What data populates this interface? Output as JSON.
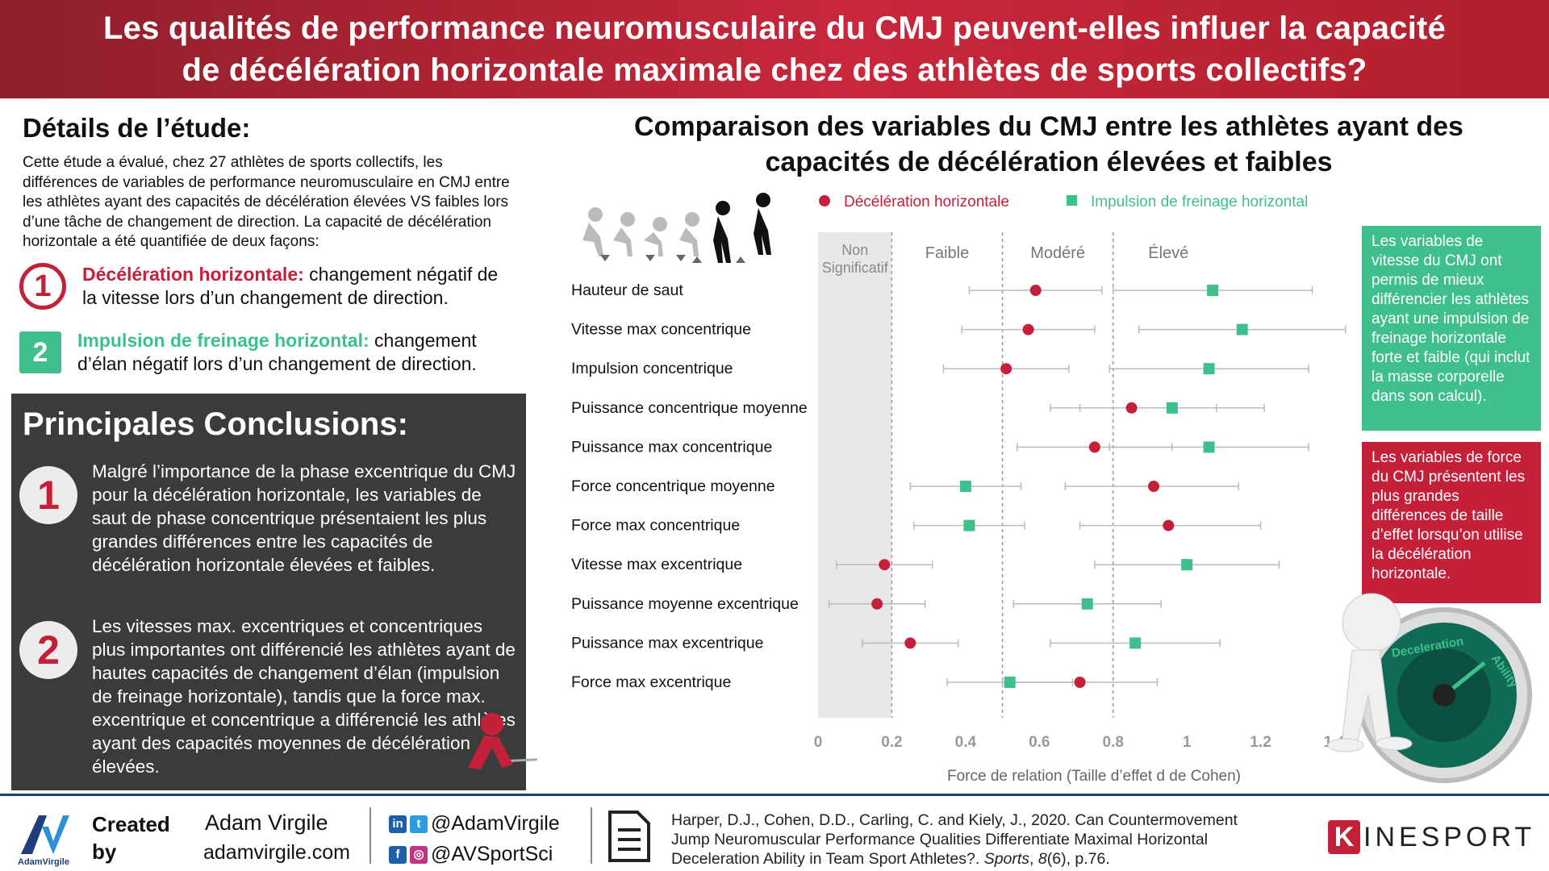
{
  "header": {
    "title_line1": "Les qualités de performance neuromusculaire du CMJ peuvent-elles influer la capacité",
    "title_line2": "de décélération horizontale maximale chez des athlètes de sports collectifs?"
  },
  "study": {
    "title": "Détails de l’étude:",
    "text": "Cette étude a évalué, chez 27 athlètes de sports collectifs, les différences de variables de performance neuromusculaire en CMJ entre les athlètes ayant des capacités de décélération élevées VS faibles lors d’une tâche de changement de direction. La capacité de décélération horizontale a été quantifiée de deux façons:",
    "def1": {
      "num": "1",
      "bold": "Décélération horizontale:",
      "rest": " changement négatif de la vitesse lors d’un changement de direction."
    },
    "def2": {
      "num": "2",
      "bold": "Impulsion de freinage horizontal:",
      "rest": " changement d’élan négatif lors d’un changement de direction."
    }
  },
  "conclusions": {
    "title": "Principales Conclusions:",
    "c1": {
      "num": "1",
      "text": "Malgré l’importance de la phase excentrique du CMJ pour la décélération horizontale, les variables de saut de phase concentrique présentaient les plus grandes différences entre les capacités de décélération horizontale élevées et faibles."
    },
    "c2": {
      "num": "2",
      "text": "Les vitesses max. excentriques et concentriques plus importantes ont différencié les athlètes ayant de hautes capacités de changement d’élan (impulsion de freinage horizontale), tandis que la force max. excentrique et concentrique a différencié les athlètes ayant des capacités moyennes de décélération élevées."
    }
  },
  "chart_title_line1": "Comparaison des variables du CMJ entre les athlètes ayant des",
  "chart_title_line2": "capacités de décélération élevées et faibles",
  "chart_data": {
    "type": "scatter",
    "legend": [
      "Décélération horizontale",
      "Impulsion de freinage horizontal"
    ],
    "legend_placement": "top",
    "colors": {
      "decel": "#c4203a",
      "impulse": "#3fbf8c",
      "zone_ns": "#e8e8e8",
      "grid": "#999999",
      "error": "#bbbbbb"
    },
    "categories": [
      "Hauteur de saut",
      "Vitesse max concentrique",
      "Impulsion concentrique",
      "Puissance concentrique moyenne",
      "Puissance max concentrique",
      "Force concentrique moyenne",
      "Force max concentrique",
      "Vitesse max excentrique",
      "Puissance moyenne excentrique",
      "Puissance max excentrique",
      "Force max excentrique"
    ],
    "series": [
      {
        "name": "Décélération horizontale",
        "values": [
          0.59,
          0.57,
          0.51,
          0.85,
          0.75,
          0.91,
          0.95,
          0.18,
          0.16,
          0.25,
          0.71
        ],
        "ci_low": [
          0.41,
          0.39,
          0.34,
          0.63,
          0.54,
          0.67,
          0.71,
          0.05,
          0.03,
          0.12,
          0.5
        ],
        "ci_high": [
          0.77,
          0.75,
          0.68,
          1.08,
          0.96,
          1.14,
          1.2,
          0.31,
          0.29,
          0.38,
          0.92
        ]
      },
      {
        "name": "Impulsion de freinage horizontal",
        "values": [
          1.07,
          1.15,
          1.06,
          0.96,
          1.06,
          0.4,
          0.41,
          1.0,
          0.73,
          0.86,
          0.52
        ],
        "ci_low": [
          0.8,
          0.87,
          0.79,
          0.71,
          0.79,
          0.25,
          0.26,
          0.75,
          0.53,
          0.63,
          0.35
        ],
        "ci_high": [
          1.34,
          1.43,
          1.33,
          1.21,
          1.33,
          0.55,
          0.56,
          1.25,
          0.93,
          1.09,
          0.69
        ]
      }
    ],
    "zones": [
      {
        "label_line1": "Non",
        "label_line2": "Significatif",
        "from": 0,
        "to": 0.2
      },
      {
        "label": "Faible",
        "from": 0.2,
        "to": 0.5
      },
      {
        "label": "Modéré",
        "from": 0.5,
        "to": 0.8
      },
      {
        "label": "Élevé",
        "from": 0.8,
        "to": 1.4
      }
    ],
    "xticks": [
      "0",
      "0.2",
      "0.4",
      "0.6",
      "0.8",
      "1",
      "1.2",
      "1.4"
    ],
    "xlim": [
      0,
      1.4
    ],
    "xlabel": "Force de relation (Taille d’effet d de Cohen)"
  },
  "box_green": "Les variables de vitesse du CMJ ont permis de mieux différencier les athlètes ayant une impulsion de freinage horizontale forte et faible (qui inclut la masse corporelle dans son calcul).",
  "box_red": "Les variables de force du CMJ présentent les plus grandes différences de taille d’effet lorsqu’on utilise la décélération horizontale.",
  "gauge": {
    "text1": "Deceleration",
    "text2": "Ability"
  },
  "footer": {
    "logo_name": "AdamVirgile",
    "created1": "Created",
    "created2": "by",
    "name": "Adam Virgile",
    "site": "adamvirgile.com",
    "tw": "@AdamVirgile",
    "ig": "@AVSportSci",
    "ref_line1": "Harper, D.J., Cohen, D.D., Carling, C. and Kiely, J., 2020. Can Countermovement",
    "ref_line2": "Jump Neuromuscular Performance Qualities Differentiate Maximal Horizontal",
    "ref_line3_a": "Deceleration Ability in Team Sport Athletes?. ",
    "ref_journal": "Sports",
    "ref_line3_b": ", ",
    "ref_vol": "8",
    "ref_line3_c": "(6), p.76.",
    "brand": "INESPORT",
    "brand_k": "K"
  }
}
